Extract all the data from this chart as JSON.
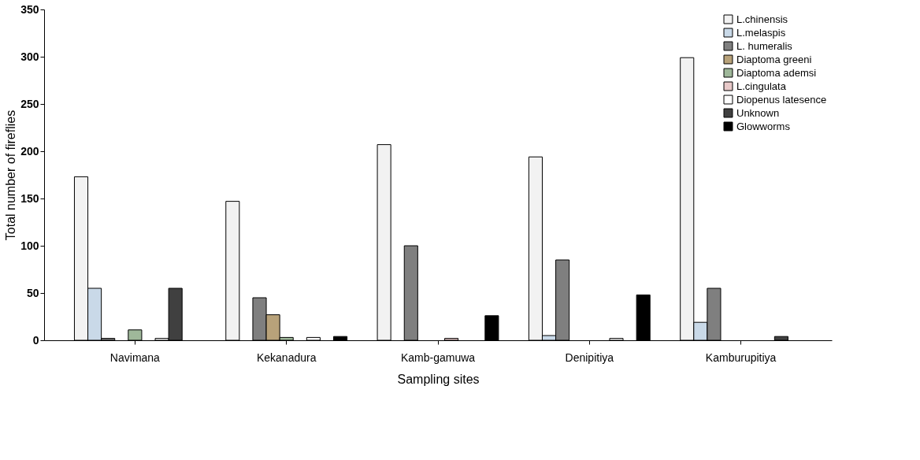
{
  "chart_data": {
    "type": "bar",
    "xlabel": "Sampling sites",
    "ylabel": "Total number of fireflies",
    "categories": [
      "Navimana",
      "Kekanadura",
      "Kamb-gamuwa",
      "Denipitiya",
      "Kamburupitiya"
    ],
    "series": [
      {
        "name": "L.chinensis",
        "color": "#f2f2f2",
        "values": [
          173,
          147,
          207,
          194,
          299
        ]
      },
      {
        "name": "L.melaspis",
        "color": "#c9d9e8",
        "values": [
          55,
          null,
          null,
          5,
          19
        ]
      },
      {
        "name": "L. humeralis",
        "color": "#7f7f7f",
        "values": [
          2,
          45,
          100,
          85,
          55
        ]
      },
      {
        "name": "Diaptoma greeni",
        "color": "#b8a27a",
        "values": [
          null,
          27,
          null,
          null,
          null
        ]
      },
      {
        "name": "Diaptoma ademsi",
        "color": "#9fb89a",
        "values": [
          11,
          3,
          null,
          null,
          null
        ]
      },
      {
        "name": "L.cingulata",
        "color": "#e8c9c9",
        "values": [
          null,
          null,
          2,
          null,
          null
        ]
      },
      {
        "name": "Diopenus latesence",
        "color": "#ffffff",
        "values": [
          2,
          3,
          null,
          2,
          null
        ]
      },
      {
        "name": "Unknown",
        "color": "#404040",
        "values": [
          55,
          null,
          null,
          null,
          4
        ]
      },
      {
        "name": "Glowworms",
        "color": "#000000",
        "values": [
          null,
          4,
          26,
          48,
          null
        ]
      }
    ],
    "ylim": [
      0,
      350
    ],
    "yticks": [
      0,
      50,
      100,
      150,
      200,
      250,
      300,
      350
    ],
    "grid": false,
    "legend": "top right"
  }
}
